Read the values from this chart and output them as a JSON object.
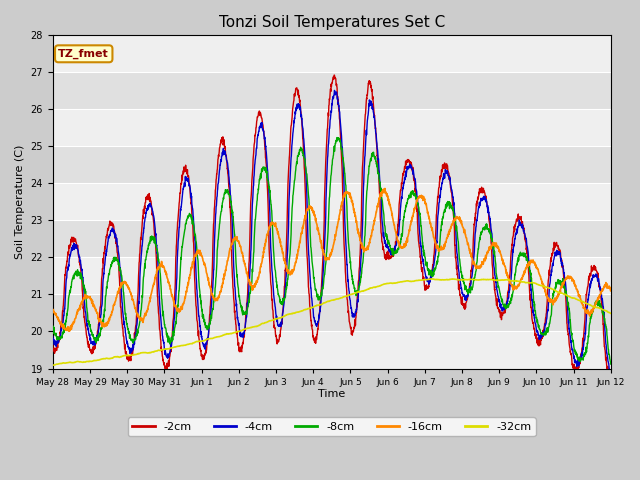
{
  "title": "Tonzi Soil Temperatures Set C",
  "xlabel": "Time",
  "ylabel": "Soil Temperature (C)",
  "ylim": [
    19.0,
    28.0
  ],
  "yticks": [
    19.0,
    20.0,
    21.0,
    22.0,
    23.0,
    24.0,
    25.0,
    26.0,
    27.0,
    28.0
  ],
  "annotation_text": "TZ_fmet",
  "annotation_bbox_facecolor": "#ffffcc",
  "annotation_bbox_edgecolor": "#cc8800",
  "line_colors": {
    "-2cm": "#cc0000",
    "-4cm": "#0000cc",
    "-8cm": "#00aa00",
    "-16cm": "#ff8800",
    "-32cm": "#dddd00"
  },
  "legend_labels": [
    "-2cm",
    "-4cm",
    "-8cm",
    "-16cm",
    "-32cm"
  ],
  "bg_band_light": "#efefef",
  "bg_band_dark": "#e0e0e0",
  "fig_bg": "#cccccc",
  "xtick_labels": [
    "May 28",
    "May 29",
    "May 30",
    "May 31",
    "Jun 1",
    "Jun 2",
    "Jun 3",
    "Jun 4",
    "Jun 5",
    "Jun 6",
    "Jun 7",
    "Jun 8",
    "Jun 9",
    "Jun 10",
    "Jun 11",
    "Jun 12"
  ],
  "n_per_day": 144
}
